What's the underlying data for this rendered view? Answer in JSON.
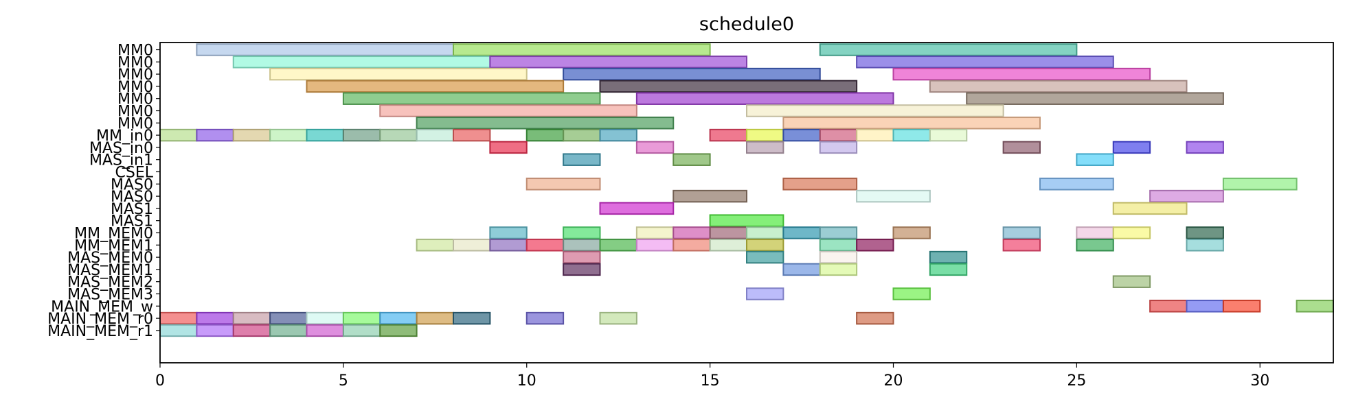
{
  "chart_data": {
    "type": "gantt",
    "title": "schedule0",
    "xlabel": "",
    "ylabel": "",
    "xlim": [
      0,
      32
    ],
    "x_ticks": [
      0,
      5,
      10,
      15,
      20,
      25,
      30
    ],
    "grid": false,
    "rows": [
      "MM0",
      "MM0",
      "MM0",
      "MM0",
      "MM0",
      "MM0",
      "MM0",
      "MM_in0",
      "MAS_in0",
      "MAS_in1",
      "CSEL",
      "MAS0",
      "MAS0",
      "MAS1",
      "MAS1",
      "MM_MEM0",
      "MM_MEM1",
      "MAS_MEM0",
      "MAS_MEM1",
      "MAS_MEM2",
      "MAS_MEM3",
      "MAIN_MEM_w",
      "MAIN_MEM_r0",
      "MAIN_MEM_r1"
    ],
    "tasks": [
      {
        "row": 0,
        "start": 1,
        "end": 8,
        "color": "#aec7e8"
      },
      {
        "row": 0,
        "start": 8,
        "end": 15,
        "color": "#98e060"
      },
      {
        "row": 0,
        "start": 18,
        "end": 25,
        "color": "#50c0a8"
      },
      {
        "row": 1,
        "start": 2,
        "end": 9,
        "color": "#90f8d8"
      },
      {
        "row": 1,
        "start": 9,
        "end": 16,
        "color": "#a050d8"
      },
      {
        "row": 1,
        "start": 19,
        "end": 26,
        "color": "#7060e0"
      },
      {
        "row": 2,
        "start": 3,
        "end": 10,
        "color": "#fff4b0"
      },
      {
        "row": 2,
        "start": 11,
        "end": 18,
        "color": "#4060c0"
      },
      {
        "row": 2,
        "start": 20,
        "end": 27,
        "color": "#e850c8"
      },
      {
        "row": 3,
        "start": 4,
        "end": 11,
        "color": "#d89a48"
      },
      {
        "row": 3,
        "start": 12,
        "end": 19,
        "color": "#403040"
      },
      {
        "row": 3,
        "start": 21,
        "end": 28,
        "color": "#c8a8a0"
      },
      {
        "row": 4,
        "start": 5,
        "end": 12,
        "color": "#60b860"
      },
      {
        "row": 4,
        "start": 13,
        "end": 20,
        "color": "#a040d0"
      },
      {
        "row": 4,
        "start": 22,
        "end": 29,
        "color": "#908070"
      },
      {
        "row": 5,
        "start": 6,
        "end": 13,
        "color": "#f4a8a0"
      },
      {
        "row": 5,
        "start": 16,
        "end": 23,
        "color": "#f4ecc8"
      },
      {
        "row": 6,
        "start": 7,
        "end": 14,
        "color": "#50a060"
      },
      {
        "row": 6,
        "start": 17,
        "end": 24,
        "color": "#f8c098"
      },
      {
        "row": 7,
        "start": 0,
        "end": 1,
        "color": "#b8e090"
      },
      {
        "row": 7,
        "start": 1,
        "end": 2,
        "color": "#9060e8"
      },
      {
        "row": 7,
        "start": 2,
        "end": 3,
        "color": "#d8c890"
      },
      {
        "row": 7,
        "start": 3,
        "end": 4,
        "color": "#b8f0b0"
      },
      {
        "row": 7,
        "start": 4,
        "end": 5,
        "color": "#40c8c0"
      },
      {
        "row": 7,
        "start": 5,
        "end": 6,
        "color": "#70a088"
      },
      {
        "row": 7,
        "start": 6,
        "end": 7,
        "color": "#98c898"
      },
      {
        "row": 7,
        "start": 7,
        "end": 8,
        "color": "#c0ecd8"
      },
      {
        "row": 7,
        "start": 8,
        "end": 9,
        "color": "#e86060"
      },
      {
        "row": 7,
        "start": 10,
        "end": 11,
        "color": "#40a040"
      },
      {
        "row": 7,
        "start": 11,
        "end": 12,
        "color": "#80b868"
      },
      {
        "row": 7,
        "start": 12,
        "end": 13,
        "color": "#50a8c0"
      },
      {
        "row": 7,
        "start": 15,
        "end": 16,
        "color": "#e84060"
      },
      {
        "row": 7,
        "start": 16,
        "end": 17,
        "color": "#e8f850"
      },
      {
        "row": 7,
        "start": 17,
        "end": 18,
        "color": "#4060c8"
      },
      {
        "row": 7,
        "start": 18,
        "end": 19,
        "color": "#d06080"
      },
      {
        "row": 7,
        "start": 19,
        "end": 20,
        "color": "#fff0b0"
      },
      {
        "row": 7,
        "start": 20,
        "end": 21,
        "color": "#60e0e0"
      },
      {
        "row": 7,
        "start": 21,
        "end": 22,
        "color": "#e0f8c8"
      },
      {
        "row": 8,
        "start": 9,
        "end": 10,
        "color": "#e83050"
      },
      {
        "row": 8,
        "start": 13,
        "end": 14,
        "color": "#e070c8"
      },
      {
        "row": 8,
        "start": 16,
        "end": 17,
        "color": "#b8a0b0"
      },
      {
        "row": 8,
        "start": 18,
        "end": 19,
        "color": "#c0b0e8"
      },
      {
        "row": 8,
        "start": 23,
        "end": 24,
        "color": "#906070"
      },
      {
        "row": 8,
        "start": 26,
        "end": 27,
        "color": "#4848e8"
      },
      {
        "row": 8,
        "start": 28,
        "end": 29,
        "color": "#9050e8"
      },
      {
        "row": 9,
        "start": 11,
        "end": 12,
        "color": "#4098b0"
      },
      {
        "row": 9,
        "start": 14,
        "end": 15,
        "color": "#78b058"
      },
      {
        "row": 9,
        "start": 25,
        "end": 26,
        "color": "#50d0f8"
      },
      {
        "row": 11,
        "start": 10,
        "end": 12,
        "color": "#f0b090"
      },
      {
        "row": 11,
        "start": 17,
        "end": 19,
        "color": "#d87858"
      },
      {
        "row": 11,
        "start": 24,
        "end": 26,
        "color": "#80b8f0"
      },
      {
        "row": 11,
        "start": 29,
        "end": 31,
        "color": "#90f088"
      },
      {
        "row": 12,
        "start": 14,
        "end": 16,
        "color": "#907868"
      },
      {
        "row": 12,
        "start": 19,
        "end": 21,
        "color": "#d8f8f0"
      },
      {
        "row": 12,
        "start": 27,
        "end": 29,
        "color": "#d088d8"
      },
      {
        "row": 13,
        "start": 12,
        "end": 14,
        "color": "#d030d0"
      },
      {
        "row": 13,
        "start": 26,
        "end": 28,
        "color": "#f0e880"
      },
      {
        "row": 14,
        "start": 15,
        "end": 17,
        "color": "#50e840"
      },
      {
        "row": 15,
        "start": 9,
        "end": 10,
        "color": "#60b8c8"
      },
      {
        "row": 15,
        "start": 11,
        "end": 12,
        "color": "#50e070"
      },
      {
        "row": 15,
        "start": 13,
        "end": 14,
        "color": "#f0f0b8"
      },
      {
        "row": 15,
        "start": 14,
        "end": 15,
        "color": "#d060b0"
      },
      {
        "row": 15,
        "start": 15,
        "end": 16,
        "color": "#a06878"
      },
      {
        "row": 15,
        "start": 16,
        "end": 17,
        "color": "#b0e8b8"
      },
      {
        "row": 15,
        "start": 17,
        "end": 18,
        "color": "#3098b0"
      },
      {
        "row": 15,
        "start": 18,
        "end": 19,
        "color": "#70b8c0"
      },
      {
        "row": 15,
        "start": 20,
        "end": 21,
        "color": "#c09068"
      },
      {
        "row": 15,
        "start": 23,
        "end": 24,
        "color": "#80b8d0"
      },
      {
        "row": 15,
        "start": 25,
        "end": 26,
        "color": "#f0c8e0"
      },
      {
        "row": 15,
        "start": 26,
        "end": 27,
        "color": "#f8f880"
      },
      {
        "row": 15,
        "start": 28,
        "end": 29,
        "color": "#306850"
      },
      {
        "row": 16,
        "start": 7,
        "end": 8,
        "color": "#d0e8a0"
      },
      {
        "row": 16,
        "start": 8,
        "end": 9,
        "color": "#e8e8c8"
      },
      {
        "row": 16,
        "start": 9,
        "end": 10,
        "color": "#9070c0"
      },
      {
        "row": 16,
        "start": 10,
        "end": 11,
        "color": "#f04060"
      },
      {
        "row": 16,
        "start": 11,
        "end": 12,
        "color": "#88a8a0"
      },
      {
        "row": 16,
        "start": 12,
        "end": 13,
        "color": "#50b850"
      },
      {
        "row": 16,
        "start": 13,
        "end": 14,
        "color": "#f0a0f0"
      },
      {
        "row": 16,
        "start": 14,
        "end": 15,
        "color": "#f08878"
      },
      {
        "row": 16,
        "start": 15,
        "end": 16,
        "color": "#d0e8c8"
      },
      {
        "row": 16,
        "start": 16,
        "end": 17,
        "color": "#c0c040"
      },
      {
        "row": 16,
        "start": 18,
        "end": 19,
        "color": "#70d8a8"
      },
      {
        "row": 16,
        "start": 19,
        "end": 20,
        "color": "#902060"
      },
      {
        "row": 16,
        "start": 23,
        "end": 24,
        "color": "#f04870"
      },
      {
        "row": 16,
        "start": 25,
        "end": 26,
        "color": "#40b060"
      },
      {
        "row": 16,
        "start": 28,
        "end": 29,
        "color": "#80d0d0"
      },
      {
        "row": 17,
        "start": 11,
        "end": 12,
        "color": "#d07090"
      },
      {
        "row": 17,
        "start": 16,
        "end": 17,
        "color": "#40a0a0"
      },
      {
        "row": 17,
        "start": 18,
        "end": 19,
        "color": "#f8f0e8"
      },
      {
        "row": 17,
        "start": 21,
        "end": 22,
        "color": "#309090"
      },
      {
        "row": 18,
        "start": 11,
        "end": 12,
        "color": "#603060"
      },
      {
        "row": 18,
        "start": 17,
        "end": 18,
        "color": "#7098e0"
      },
      {
        "row": 18,
        "start": 18,
        "end": 19,
        "color": "#d8f898"
      },
      {
        "row": 18,
        "start": 21,
        "end": 22,
        "color": "#40d080"
      },
      {
        "row": 19,
        "start": 26,
        "end": 27,
        "color": "#a0c080"
      },
      {
        "row": 20,
        "start": 16,
        "end": 17,
        "color": "#a0a0f8"
      },
      {
        "row": 20,
        "start": 20,
        "end": 21,
        "color": "#70f050"
      },
      {
        "row": 21,
        "start": 27,
        "end": 28,
        "color": "#e85050"
      },
      {
        "row": 21,
        "start": 28,
        "end": 29,
        "color": "#6870f0"
      },
      {
        "row": 21,
        "start": 29,
        "end": 30,
        "color": "#f84830"
      },
      {
        "row": 21,
        "start": 31,
        "end": 32,
        "color": "#88d060"
      },
      {
        "row": 22,
        "start": 0,
        "end": 1,
        "color": "#f06060"
      },
      {
        "row": 22,
        "start": 1,
        "end": 2,
        "color": "#a040e0"
      },
      {
        "row": 22,
        "start": 2,
        "end": 3,
        "color": "#c8a0a8"
      },
      {
        "row": 22,
        "start": 3,
        "end": 4,
        "color": "#506098"
      },
      {
        "row": 22,
        "start": 4,
        "end": 5,
        "color": "#d0f8f0"
      },
      {
        "row": 22,
        "start": 5,
        "end": 6,
        "color": "#80f870"
      },
      {
        "row": 22,
        "start": 6,
        "end": 7,
        "color": "#50b8f0"
      },
      {
        "row": 22,
        "start": 7,
        "end": 8,
        "color": "#d0a050"
      },
      {
        "row": 22,
        "start": 8,
        "end": 9,
        "color": "#306880"
      },
      {
        "row": 22,
        "start": 10,
        "end": 11,
        "color": "#7068d0"
      },
      {
        "row": 22,
        "start": 12,
        "end": 13,
        "color": "#c0e0a0"
      },
      {
        "row": 22,
        "start": 19,
        "end": 20,
        "color": "#d07050"
      },
      {
        "row": 23,
        "start": 0,
        "end": 1,
        "color": "#90d8d8"
      },
      {
        "row": 23,
        "start": 1,
        "end": 2,
        "color": "#b070f8"
      },
      {
        "row": 23,
        "start": 2,
        "end": 3,
        "color": "#d04888"
      },
      {
        "row": 23,
        "start": 3,
        "end": 4,
        "color": "#70b090"
      },
      {
        "row": 23,
        "start": 4,
        "end": 5,
        "color": "#d060d0"
      },
      {
        "row": 23,
        "start": 5,
        "end": 6,
        "color": "#90d0b0"
      },
      {
        "row": 23,
        "start": 6,
        "end": 7,
        "color": "#60a040"
      }
    ]
  }
}
